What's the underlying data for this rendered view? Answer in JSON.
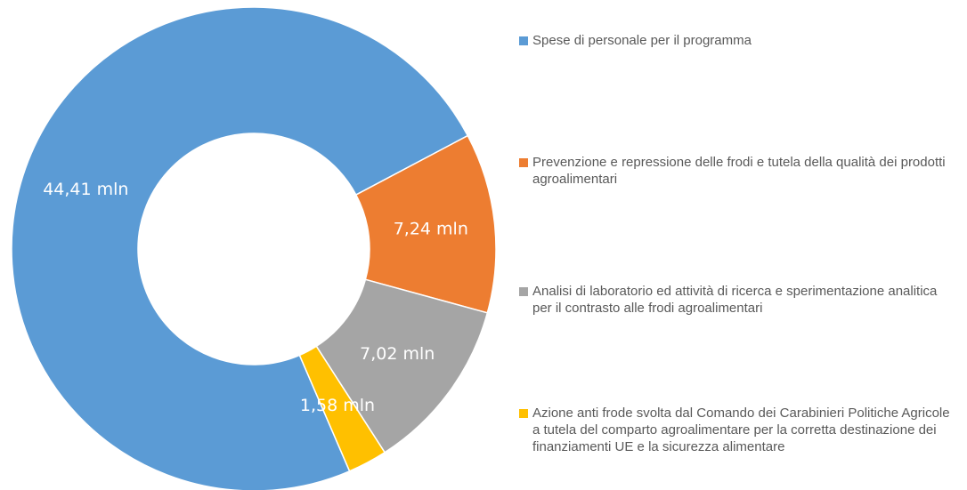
{
  "chart_data": {
    "type": "donut",
    "categories": [
      "Spese di personale per il programma",
      "Prevenzione e repressione delle frodi e tutela della qualità dei prodotti agroalimentari",
      "Analisi di laboratorio ed attività di ricerca e sperimentazione analitica per il contrasto alle frodi agroalimentari",
      "Azione anti frode svolta dal Comando dei Carabinieri Politiche Agricole a tutela del comparto agroalimentare per la corretta destinazione dei finanziamenti UE e la sicurezza alimentare"
    ],
    "values": [
      44.41,
      7.24,
      7.02,
      1.58
    ],
    "value_labels": [
      "44,41 mln",
      "7,24 mln",
      "7,02 mln",
      "1,58 mln"
    ],
    "colors": [
      "#5b9bd5",
      "#ed7d31",
      "#a5a5a5",
      "#ffc000"
    ],
    "legend": "right"
  }
}
